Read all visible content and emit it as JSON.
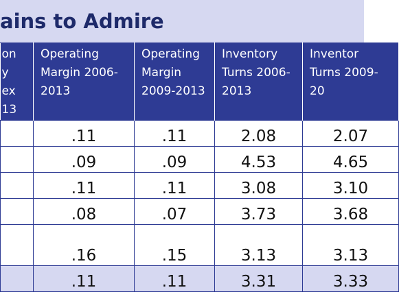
{
  "title": "ains to Admire",
  "header": [
    [
      "on",
      "y",
      "ex",
      "13"
    ],
    "Operating Margin 2006-2013",
    "Operating Margin 2009-2013",
    "Inventory Turns 2006-2013",
    "Inventor Turns 2009-20"
  ],
  "rows": [
    [
      ".11",
      ".11",
      "2.08",
      "2.07"
    ],
    [
      ".09",
      ".09",
      "4.53",
      "4.65"
    ],
    [
      ".11",
      ".11",
      "3.08",
      "3.10"
    ],
    [
      ".08",
      ".07",
      "3.73",
      "3.68"
    ],
    [
      ".16",
      ".15",
      "3.13",
      "3.13"
    ],
    [
      ".11",
      ".11",
      "3.31",
      "3.33"
    ]
  ]
}
